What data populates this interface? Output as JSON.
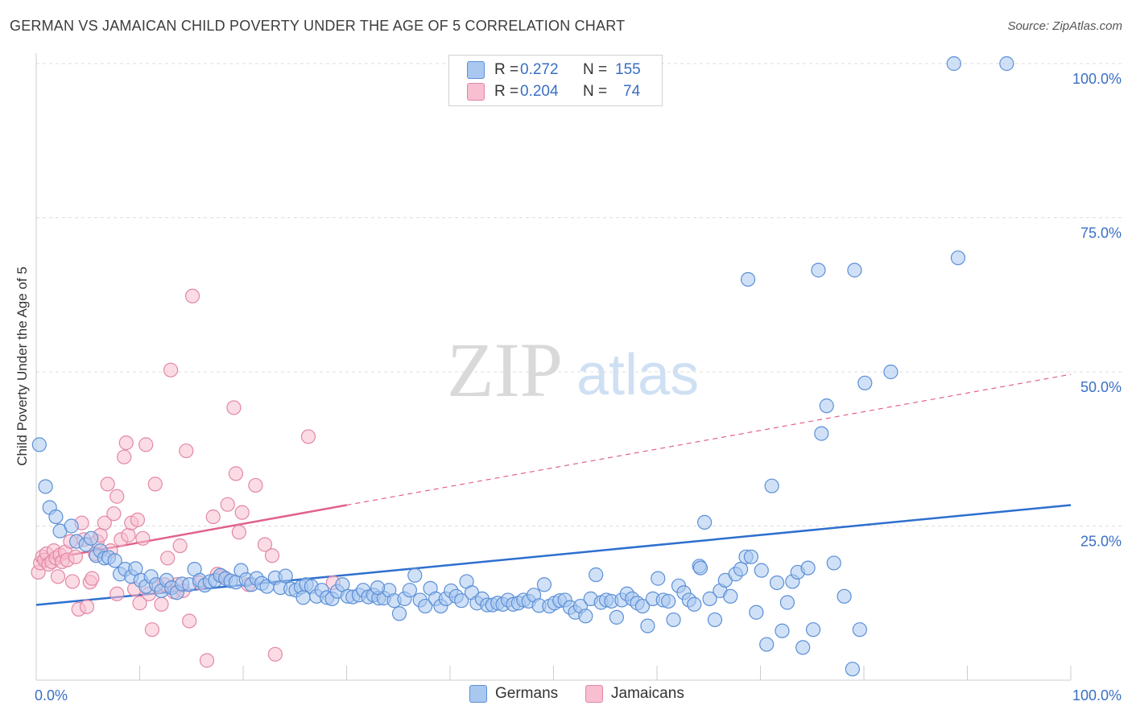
{
  "title": "GERMAN VS JAMAICAN CHILD POVERTY UNDER THE AGE OF 5 CORRELATION CHART",
  "source": "Source: ZipAtlas.com",
  "watermark": {
    "zip": "ZIP",
    "atlas": "atlas"
  },
  "legend": {
    "rows": [
      {
        "r_label": "R =",
        "r_value": "0.272",
        "n_label": "N =",
        "n_value": "155"
      },
      {
        "r_label": "R =",
        "r_value": "0.204",
        "n_label": "N =",
        "n_value": "74"
      }
    ]
  },
  "bottom_legend": {
    "germans": "Germans",
    "jamaicans": "Jamaicans"
  },
  "colors": {
    "german_fill": "#a9c8f0",
    "german_stroke": "#5b8fd6",
    "german_line": "#2d6fcf",
    "jamaican_fill": "#f7bfd0",
    "jamaican_stroke": "#e387a6",
    "jamaican_line": "#e0628c",
    "axis_label": "#3a6fc4",
    "grid": "#dddddd"
  },
  "chart_data": {
    "type": "scatter",
    "title": "GERMAN VS JAMAICAN CHILD POVERTY UNDER THE AGE OF 5 CORRELATION CHART",
    "xlabel": "",
    "ylabel": "Child Poverty Under the Age of 5",
    "xlim": [
      0,
      100
    ],
    "ylim": [
      0,
      100
    ],
    "x_tick_labels": [
      "0.0%",
      "100.0%"
    ],
    "y_tick_labels": [
      "25.0%",
      "50.0%",
      "75.0%",
      "100.0%"
    ],
    "y_ticks": [
      25,
      50,
      75,
      100
    ],
    "grid": true,
    "legend_position": "top-center",
    "series": [
      {
        "name": "Germans",
        "r": 0.272,
        "n": 155,
        "trend": {
          "x": [
            0,
            100
          ],
          "y": [
            12.2,
            28.4
          ],
          "dashed_after": null
        },
        "points": [
          [
            0.3,
            38.2
          ],
          [
            0.9,
            31.4
          ],
          [
            1.3,
            28
          ],
          [
            1.9,
            26.5
          ],
          [
            2.3,
            24.2
          ],
          [
            3.4,
            25
          ],
          [
            3.9,
            22.5
          ],
          [
            4.8,
            22
          ],
          [
            5.3,
            23
          ],
          [
            5.8,
            20.2
          ],
          [
            6.2,
            21
          ],
          [
            6.6,
            19.8
          ],
          [
            7.0,
            19.9
          ],
          [
            7.6,
            19.4
          ],
          [
            8.1,
            17.2
          ],
          [
            8.6,
            18
          ],
          [
            9.2,
            16.8
          ],
          [
            9.6,
            18.1
          ],
          [
            10.1,
            16.2
          ],
          [
            10.6,
            15.2
          ],
          [
            11.1,
            16.8
          ],
          [
            11.6,
            15.5
          ],
          [
            12.1,
            14.5
          ],
          [
            12.6,
            16.2
          ],
          [
            13.1,
            15
          ],
          [
            13.6,
            14.2
          ],
          [
            14.1,
            15.6
          ],
          [
            14.8,
            15.5
          ],
          [
            15.3,
            18
          ],
          [
            15.8,
            16.2
          ],
          [
            16.3,
            15.4
          ],
          [
            16.8,
            16
          ],
          [
            17.3,
            16.2
          ],
          [
            17.8,
            17
          ],
          [
            18.3,
            16.5
          ],
          [
            18.8,
            16.1
          ],
          [
            19.3,
            15.9
          ],
          [
            19.8,
            17.8
          ],
          [
            20.3,
            16.3
          ],
          [
            20.8,
            15.5
          ],
          [
            21.3,
            16.5
          ],
          [
            21.8,
            15.7
          ],
          [
            22.3,
            15.2
          ],
          [
            23.1,
            16.6
          ],
          [
            23.6,
            15
          ],
          [
            24.1,
            16.9
          ],
          [
            24.6,
            14.8
          ],
          [
            25.1,
            14.6
          ],
          [
            25.6,
            15.1
          ],
          [
            26.1,
            15.5
          ],
          [
            26.6,
            15.2
          ],
          [
            27.1,
            13.6
          ],
          [
            27.6,
            14.6
          ],
          [
            28.1,
            13.4
          ],
          [
            28.6,
            13.2
          ],
          [
            29.1,
            14.4
          ],
          [
            29.6,
            15.5
          ],
          [
            30.1,
            13.6
          ],
          [
            30.6,
            13.5
          ],
          [
            31.2,
            13.8
          ],
          [
            31.6,
            14.6
          ],
          [
            32.1,
            13.5
          ],
          [
            32.6,
            13.8
          ],
          [
            33.1,
            13.3
          ],
          [
            33.6,
            13.3
          ],
          [
            34.1,
            14.6
          ],
          [
            34.6,
            12.9
          ],
          [
            35.1,
            10.8
          ],
          [
            35.6,
            13.2
          ],
          [
            36.1,
            14.6
          ],
          [
            36.6,
            17
          ],
          [
            37.1,
            13
          ],
          [
            37.6,
            12
          ],
          [
            38.1,
            14.9
          ],
          [
            38.6,
            13.2
          ],
          [
            39.1,
            12
          ],
          [
            39.6,
            13.2
          ],
          [
            40.1,
            14.5
          ],
          [
            40.6,
            13.6
          ],
          [
            41.1,
            12.9
          ],
          [
            41.6,
            16
          ],
          [
            42.1,
            14.2
          ],
          [
            42.6,
            12.5
          ],
          [
            43.1,
            13.2
          ],
          [
            43.6,
            12.2
          ],
          [
            44.1,
            12.2
          ],
          [
            44.6,
            12.5
          ],
          [
            45.1,
            12.3
          ],
          [
            45.6,
            13
          ],
          [
            46.1,
            12.3
          ],
          [
            46.6,
            12.5
          ],
          [
            47.1,
            13
          ],
          [
            47.6,
            12.8
          ],
          [
            48.1,
            13.8
          ],
          [
            48.6,
            12.1
          ],
          [
            49.1,
            15.5
          ],
          [
            49.6,
            12
          ],
          [
            50.1,
            12.5
          ],
          [
            50.6,
            12.9
          ],
          [
            51.1,
            13
          ],
          [
            51.6,
            11.8
          ],
          [
            52.1,
            11
          ],
          [
            52.6,
            12
          ],
          [
            53.1,
            10.4
          ],
          [
            53.6,
            13.2
          ],
          [
            54.1,
            17.1
          ],
          [
            54.6,
            12.6
          ],
          [
            55.1,
            13
          ],
          [
            55.6,
            12.8
          ],
          [
            56.1,
            10.2
          ],
          [
            56.6,
            13
          ],
          [
            57.1,
            14
          ],
          [
            57.6,
            13.2
          ],
          [
            58.1,
            12.5
          ],
          [
            58.6,
            12
          ],
          [
            59.1,
            8.8
          ],
          [
            59.6,
            13.2
          ],
          [
            60.1,
            16.5
          ],
          [
            60.6,
            13
          ],
          [
            61.1,
            12.8
          ],
          [
            61.6,
            9.8
          ],
          [
            62.1,
            15.3
          ],
          [
            62.6,
            14.2
          ],
          [
            63.1,
            13
          ],
          [
            63.6,
            12.3
          ],
          [
            64.1,
            18.5
          ],
          [
            64.6,
            25.6
          ],
          [
            65.1,
            13.2
          ],
          [
            65.6,
            9.8
          ],
          [
            66.1,
            14.5
          ],
          [
            66.6,
            16.2
          ],
          [
            67.1,
            13.6
          ],
          [
            67.6,
            17.2
          ],
          [
            68.1,
            18
          ],
          [
            68.6,
            20
          ],
          [
            69.1,
            20
          ],
          [
            69.6,
            11
          ],
          [
            70.1,
            17.8
          ],
          [
            70.6,
            5.8
          ],
          [
            71.1,
            31.5
          ],
          [
            71.6,
            15.8
          ],
          [
            72.1,
            8
          ],
          [
            72.6,
            12.6
          ],
          [
            73.1,
            16
          ],
          [
            73.6,
            17.5
          ],
          [
            74.1,
            5.3
          ],
          [
            74.6,
            18.2
          ],
          [
            75.1,
            8.2
          ],
          [
            75.6,
            66.5
          ],
          [
            75.9,
            40
          ],
          [
            76.4,
            44.5
          ],
          [
            77.1,
            19
          ],
          [
            78.1,
            13.6
          ],
          [
            78.9,
            1.8
          ],
          [
            79.1,
            66.5
          ],
          [
            79.6,
            8.2
          ],
          [
            80.1,
            48.2
          ],
          [
            82.6,
            50
          ],
          [
            88.7,
            100
          ],
          [
            89.1,
            68.5
          ],
          [
            93.8,
            100
          ],
          [
            68.8,
            65
          ],
          [
            64.2,
            18.2
          ],
          [
            25.8,
            13.4
          ],
          [
            33.0,
            15.0
          ]
        ]
      },
      {
        "name": "Jamaicans",
        "r": 0.204,
        "n": 74,
        "trend": {
          "x": [
            0,
            100
          ],
          "y": [
            19.3,
            49.6
          ],
          "solid_until_x": 30
        },
        "points": [
          [
            0.2,
            17.5
          ],
          [
            0.4,
            19
          ],
          [
            0.6,
            20
          ],
          [
            0.8,
            19.5
          ],
          [
            1.0,
            20.5
          ],
          [
            1.2,
            18.8
          ],
          [
            1.5,
            19.2
          ],
          [
            1.7,
            21
          ],
          [
            1.9,
            19.8
          ],
          [
            2.1,
            16.8
          ],
          [
            2.3,
            20.3
          ],
          [
            2.5,
            19.2
          ],
          [
            2.8,
            20.8
          ],
          [
            3.0,
            19.5
          ],
          [
            3.3,
            22.5
          ],
          [
            3.5,
            16
          ],
          [
            3.8,
            20
          ],
          [
            4.1,
            11.5
          ],
          [
            4.4,
            25.5
          ],
          [
            4.6,
            22.8
          ],
          [
            4.9,
            11.9
          ],
          [
            5.2,
            15.9
          ],
          [
            5.4,
            16.5
          ],
          [
            5.7,
            20.5
          ],
          [
            5.9,
            22.5
          ],
          [
            6.2,
            23.5
          ],
          [
            6.6,
            25.5
          ],
          [
            6.9,
            31.8
          ],
          [
            7.2,
            21
          ],
          [
            7.5,
            27
          ],
          [
            7.8,
            29.8
          ],
          [
            7.8,
            14
          ],
          [
            8.2,
            22.8
          ],
          [
            8.5,
            36.2
          ],
          [
            8.7,
            38.5
          ],
          [
            8.9,
            23.5
          ],
          [
            9.2,
            25.5
          ],
          [
            9.5,
            14.8
          ],
          [
            9.8,
            26
          ],
          [
            10.0,
            12.5
          ],
          [
            10.3,
            23
          ],
          [
            10.6,
            38.2
          ],
          [
            10.9,
            14
          ],
          [
            11.2,
            8.2
          ],
          [
            11.5,
            31.8
          ],
          [
            11.8,
            15.2
          ],
          [
            12.1,
            12.3
          ],
          [
            12.4,
            15.5
          ],
          [
            12.7,
            19.8
          ],
          [
            13.0,
            50.3
          ],
          [
            13.3,
            14.3
          ],
          [
            13.6,
            15.5
          ],
          [
            13.9,
            21.8
          ],
          [
            14.2,
            14.5
          ],
          [
            14.5,
            37.2
          ],
          [
            14.8,
            9.6
          ],
          [
            15.1,
            62.3
          ],
          [
            15.8,
            15.8
          ],
          [
            16.5,
            3.2
          ],
          [
            17.1,
            26.5
          ],
          [
            17.5,
            17.2
          ],
          [
            18.0,
            16.8
          ],
          [
            18.5,
            28.5
          ],
          [
            19.1,
            44.2
          ],
          [
            19.3,
            33.5
          ],
          [
            19.6,
            24
          ],
          [
            19.9,
            27.2
          ],
          [
            20.5,
            15.5
          ],
          [
            21.2,
            31.6
          ],
          [
            22.1,
            22
          ],
          [
            22.8,
            20.2
          ],
          [
            23.1,
            4.2
          ],
          [
            26.3,
            39.5
          ],
          [
            28.7,
            15.8
          ]
        ]
      }
    ]
  }
}
